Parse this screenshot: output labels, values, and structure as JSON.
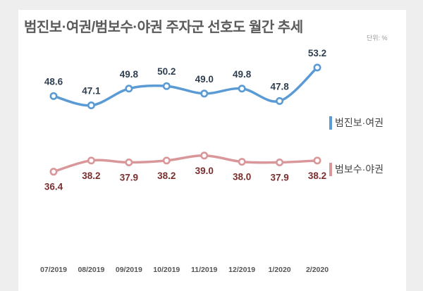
{
  "title": "범진보·여권/범보수·야권 주자군 선호도 월간 추세",
  "unit": "단위: %",
  "colors": {
    "progressive": "#5b9bd5",
    "conservative": "#d9979a",
    "progressive_label": "#2f3f4f",
    "conservative_label": "#7a2e2e",
    "tick": "#555555"
  },
  "chart_data": {
    "type": "line",
    "categories": [
      "07/2019",
      "08/2019",
      "09/2019",
      "10/2019",
      "11/2019",
      "12/2019",
      "1/2020",
      "2/2020"
    ],
    "series": [
      {
        "name": "범진보·여권",
        "values": [
          48.6,
          47.1,
          49.8,
          50.2,
          49.0,
          49.8,
          47.8,
          53.2
        ],
        "labels": [
          "48.6",
          "47.1",
          "49.8",
          "50.2",
          "49.0",
          "49.8",
          "47.8",
          "53.2"
        ]
      },
      {
        "name": "범보수·야권",
        "values": [
          36.4,
          38.2,
          37.9,
          38.2,
          39.0,
          38.0,
          37.9,
          38.2
        ],
        "labels": [
          "36.4",
          "38.2",
          "37.9",
          "38.2",
          "39.0",
          "38.0",
          "37.9",
          "38.2"
        ]
      }
    ],
    "grid": false,
    "legend": "right"
  }
}
